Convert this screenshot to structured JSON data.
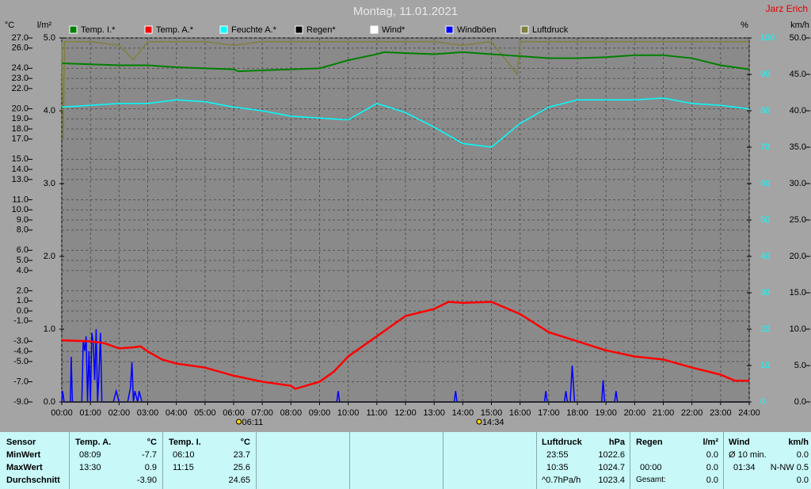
{
  "header": {
    "title": "Montag, 11.01.2021",
    "author": "Jarz Erich"
  },
  "chart_data": {
    "type": "line",
    "xlim": [
      0,
      24
    ],
    "xticks": [
      {
        "value": 0,
        "label": "00:00"
      },
      {
        "value": 1,
        "label": "01:00"
      },
      {
        "value": 2,
        "label": "02:00"
      },
      {
        "value": 3,
        "label": "03:00"
      },
      {
        "value": 4,
        "label": "04:00"
      },
      {
        "value": 5,
        "label": "05:00"
      },
      {
        "value": 6,
        "label": "06:00"
      },
      {
        "value": 7,
        "label": "07:00"
      },
      {
        "value": 8,
        "label": "08:00"
      },
      {
        "value": 9,
        "label": "09:00"
      },
      {
        "value": 10,
        "label": "10:00"
      },
      {
        "value": 11,
        "label": "11:00"
      },
      {
        "value": 12,
        "label": "12:00"
      },
      {
        "value": 13,
        "label": "13:00"
      },
      {
        "value": 14,
        "label": "14:00"
      },
      {
        "value": 15,
        "label": "15:00"
      },
      {
        "value": 16,
        "label": "16:00"
      },
      {
        "value": 17,
        "label": "17:00"
      },
      {
        "value": 18,
        "label": "18:00"
      },
      {
        "value": 19,
        "label": "19:00"
      },
      {
        "value": 20,
        "label": "20:00"
      },
      {
        "value": 21,
        "label": "21:00"
      },
      {
        "value": 22,
        "label": "22:00"
      },
      {
        "value": 23,
        "label": "23:00"
      },
      {
        "value": 24,
        "label": "24:00"
      }
    ],
    "grid": true,
    "axes": {
      "temp": {
        "label": "°C",
        "ylim": [
          -9,
          27
        ],
        "yticks": [
          {
            "value": 27,
            "label": "27.0"
          },
          {
            "value": 26,
            "label": "26.0"
          },
          {
            "value": 24,
            "label": "24.0"
          },
          {
            "value": 23,
            "label": "23.0"
          },
          {
            "value": 22,
            "label": "22.0"
          },
          {
            "value": 20,
            "label": "20.0"
          },
          {
            "value": 19,
            "label": "19.0"
          },
          {
            "value": 18,
            "label": "18.0"
          },
          {
            "value": 17,
            "label": "17.0"
          },
          {
            "value": 15,
            "label": "15.0"
          },
          {
            "value": 14,
            "label": "14.0"
          },
          {
            "value": 13,
            "label": "13.0"
          },
          {
            "value": 11,
            "label": "11.0"
          },
          {
            "value": 10,
            "label": "10.0"
          },
          {
            "value": 9,
            "label": "9.0"
          },
          {
            "value": 8,
            "label": "8.0"
          },
          {
            "value": 6,
            "label": "6.0"
          },
          {
            "value": 5,
            "label": "5.0"
          },
          {
            "value": 4,
            "label": "4.0"
          },
          {
            "value": 2,
            "label": "2.0"
          },
          {
            "value": 1,
            "label": "1.0"
          },
          {
            "value": 0,
            "label": "0.0"
          },
          {
            "value": -1,
            "label": "-1.0"
          },
          {
            "value": -3,
            "label": "-3.0"
          },
          {
            "value": -4,
            "label": "-4.0"
          },
          {
            "value": -5,
            "label": "-5.0"
          },
          {
            "value": -7,
            "label": "-7.0"
          },
          {
            "value": -9,
            "label": "-9.0"
          }
        ]
      },
      "rain": {
        "label": "l/m²",
        "ylim": [
          0,
          5
        ],
        "yticks": [
          {
            "value": 0,
            "label": "0.0"
          },
          {
            "value": 1,
            "label": "1.0"
          },
          {
            "value": 2,
            "label": "2.0"
          },
          {
            "value": 3,
            "label": "3.0"
          },
          {
            "value": 4,
            "label": "4.0"
          },
          {
            "value": 5,
            "label": "5.0"
          }
        ]
      },
      "humidity": {
        "label": "%",
        "ylim": [
          0,
          100
        ],
        "yticks": [
          0,
          10,
          20,
          30,
          40,
          50,
          60,
          70,
          80,
          90,
          100
        ]
      },
      "wind": {
        "label": "km/h",
        "ylim": [
          0,
          50
        ],
        "yticks": [
          {
            "value": 0,
            "label": "0.0"
          },
          {
            "value": 5,
            "label": "5.0"
          },
          {
            "value": 10,
            "label": "10.0"
          },
          {
            "value": 15,
            "label": "15.0"
          },
          {
            "value": 20,
            "label": "20.0"
          },
          {
            "value": 25,
            "label": "25.0"
          },
          {
            "value": 30,
            "label": "30.0"
          },
          {
            "value": 35,
            "label": "35.0"
          },
          {
            "value": 40,
            "label": "40.0"
          },
          {
            "value": 45,
            "label": "45.0"
          },
          {
            "value": 50,
            "label": "50.0"
          }
        ]
      }
    },
    "series": [
      {
        "name": "Temp. I.*",
        "color": "#008000",
        "axis": "temp",
        "x": [
          0,
          1,
          2,
          3,
          4,
          5,
          6,
          6.17,
          7,
          8,
          9,
          10,
          11,
          11.25,
          12,
          13,
          14,
          15,
          16,
          17,
          18,
          19,
          20,
          21,
          22,
          23,
          24
        ],
        "values": [
          24.5,
          24.4,
          24.3,
          24.3,
          24.1,
          24.0,
          23.9,
          23.7,
          23.8,
          23.9,
          24.0,
          24.8,
          25.4,
          25.6,
          25.5,
          25.4,
          25.6,
          25.4,
          25.2,
          25.0,
          25.0,
          25.1,
          25.3,
          25.3,
          25.0,
          24.3,
          23.9
        ]
      },
      {
        "name": "Temp. A.*",
        "color": "#ff0000",
        "axis": "temp",
        "x": [
          0,
          1,
          1.5,
          2,
          2.5,
          2.75,
          3,
          3.5,
          4,
          5,
          6,
          7,
          8,
          8.15,
          9,
          9.5,
          10,
          11,
          12,
          13,
          13.5,
          14,
          15,
          16,
          17,
          18,
          19,
          20,
          21,
          22,
          23,
          23.5,
          24
        ],
        "values": [
          -2.9,
          -3.0,
          -3.2,
          -3.7,
          -3.6,
          -3.5,
          -4.0,
          -4.8,
          -5.2,
          -5.6,
          -6.4,
          -7.0,
          -7.4,
          -7.7,
          -7.0,
          -6.0,
          -4.5,
          -2.5,
          -0.5,
          0.2,
          0.9,
          0.8,
          0.9,
          -0.3,
          -2.1,
          -3.0,
          -3.9,
          -4.5,
          -4.8,
          -5.6,
          -6.3,
          -6.9,
          -6.9
        ]
      },
      {
        "name": "Feuchte A.*",
        "color": "#00ffff",
        "axis": "humidity",
        "x": [
          0,
          1,
          2,
          3,
          4,
          5,
          6,
          7,
          8,
          9,
          10,
          11,
          12,
          13,
          14,
          15,
          16,
          17,
          18,
          19,
          20,
          21,
          22,
          23,
          24
        ],
        "values": [
          81,
          81.5,
          82,
          82,
          83,
          82.5,
          81,
          80,
          78.5,
          78,
          77.5,
          82,
          79.5,
          75.5,
          71,
          70,
          76.5,
          81,
          83,
          83,
          83,
          83.5,
          82,
          81.5,
          80.5
        ]
      },
      {
        "name": "Regen*",
        "color": "#000000",
        "axis": "rain",
        "x": [
          0,
          24
        ],
        "values": [
          0,
          0
        ]
      },
      {
        "name": "Wind*",
        "color": "#ffffff",
        "axis": "wind",
        "x": [
          0,
          24
        ],
        "values": [
          0,
          0
        ]
      },
      {
        "name": "Windböen",
        "color": "#0000ff",
        "axis": "wind",
        "x": [
          0,
          0.03,
          0.08,
          0.3,
          0.33,
          0.37,
          0.7,
          0.75,
          0.8,
          0.85,
          0.9,
          0.95,
          1.0,
          1.05,
          1.1,
          1.15,
          1.2,
          1.25,
          1.3,
          1.35,
          1.4,
          1.5,
          1.8,
          1.9,
          2.0,
          2.3,
          2.4,
          2.45,
          2.5,
          2.55,
          2.65,
          2.7,
          2.8,
          9.6,
          9.65,
          9.7,
          13.7,
          13.75,
          13.8,
          16.85,
          16.9,
          16.95,
          17.55,
          17.6,
          17.65,
          17.75,
          17.82,
          17.9,
          18.85,
          18.9,
          18.95,
          19.3,
          19.35,
          19.4,
          24
        ],
        "values": [
          0,
          1.5,
          0,
          0,
          6.2,
          0,
          0,
          8.5,
          7,
          9,
          0,
          7,
          0,
          9.5,
          8,
          3,
          10,
          0,
          4,
          9.5,
          0,
          0,
          0,
          1.5,
          0,
          0,
          2,
          5.5,
          0,
          1.5,
          0,
          1.5,
          0,
          0,
          1.5,
          0,
          0,
          1.5,
          0,
          0,
          1.5,
          0,
          0,
          1.5,
          0,
          0,
          5,
          0,
          0,
          3,
          0,
          0,
          1.5,
          0,
          0
        ]
      },
      {
        "name": "Luftdruck",
        "color": "#808040",
        "axis": "humidity",
        "x": [
          0,
          0.05,
          0.1,
          1,
          2,
          2.5,
          3,
          4,
          5,
          6,
          7,
          8,
          9,
          10,
          11,
          12,
          13,
          14,
          15,
          15.9,
          16,
          17,
          18,
          19,
          20,
          21,
          22,
          23,
          24
        ],
        "values": [
          99,
          72,
          99,
          99,
          98,
          94,
          99,
          99,
          99,
          98,
          99,
          99,
          99,
          99,
          99,
          99,
          99,
          98,
          99,
          90,
          99,
          99,
          99,
          99,
          99,
          99,
          99,
          99,
          99
        ]
      }
    ],
    "sun": [
      {
        "x": 6.18,
        "label": "06:11"
      },
      {
        "x": 14.57,
        "label": "14:34"
      }
    ]
  },
  "table": {
    "sensor": {
      "header": "Sensor",
      "rows": [
        "MinWert",
        "MaxWert",
        "Durchschnitt"
      ]
    },
    "temp_a": {
      "header": "Temp. A.",
      "unit": "°C",
      "min": [
        "08:09",
        "-7.7"
      ],
      "max": [
        "13:30",
        "0.9"
      ],
      "avg": "-3.90"
    },
    "temp_i": {
      "header": "Temp. I.",
      "unit": "°C",
      "min": [
        "06:10",
        "23.7"
      ],
      "max": [
        "11:15",
        "25.6"
      ],
      "avg": "24.65"
    },
    "pressure": {
      "header": "Luftdruck",
      "unit": "hPa",
      "min": [
        "23:55",
        "1022.6"
      ],
      "max": [
        "10:35",
        "1024.7"
      ],
      "avg": [
        "^0.7hPa/h",
        "1023.4"
      ]
    },
    "rain": {
      "header": "Regen",
      "unit": "l/m²",
      "row1": "0.0",
      "row2": [
        "00:00",
        "0.0"
      ],
      "row3": [
        "Gesamt:",
        "0.0"
      ]
    },
    "wind": {
      "header": "Wind",
      "unit": "km/h",
      "row1": [
        "Ø 10 min.",
        "0.0"
      ],
      "row2": [
        "01:34",
        "N-NW 0.5"
      ],
      "row3": "0.0"
    }
  }
}
